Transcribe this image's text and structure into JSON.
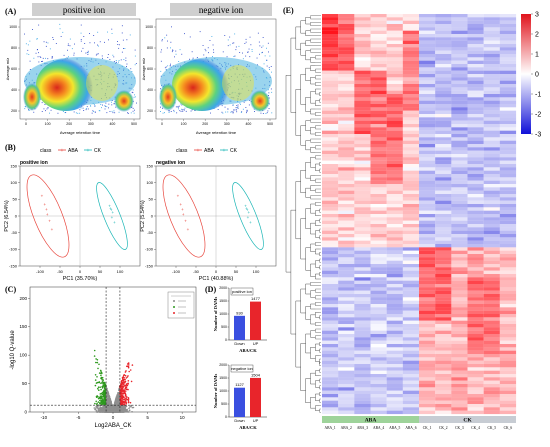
{
  "panels": {
    "A": {
      "label": "(A)",
      "pos_title": "positive ion",
      "neg_title": "negative ion",
      "xlabel": "Average retention time",
      "ylabel": "Average m/z",
      "yticks": [
        "1000",
        "800",
        "600",
        "400",
        "200"
      ],
      "xticks": [
        "0",
        "100",
        "200",
        "300",
        "400",
        "500"
      ]
    },
    "B": {
      "label": "(B)",
      "legend_title": "class",
      "legend_items": [
        "ABA",
        "CK"
      ],
      "pos": {
        "subtitle": "positive ion",
        "xlabel": "PC1 (35.70%)",
        "ylabel": "PC2 (6.54%)",
        "xticks": [
          "-100",
          "-50",
          "0",
          "50",
          "100"
        ],
        "yticks": [
          "150",
          "100",
          "50",
          "0",
          "-50",
          "-100",
          "-150"
        ]
      },
      "neg": {
        "subtitle": "negative ion",
        "xlabel": "PC1 (40.88%)",
        "ylabel": "PC2 (5.54%)",
        "xticks": [
          "-100",
          "-50",
          "0",
          "50",
          "100"
        ],
        "yticks": [
          "150",
          "100",
          "50",
          "0",
          "-50",
          "-100",
          "-150"
        ]
      }
    },
    "C": {
      "label": "(C)",
      "xlabel": "Log2ABA_CK",
      "ylabel": "-log10 Q-value",
      "xticks": [
        "-10",
        "-5",
        "0",
        "5",
        "10"
      ],
      "yticks": [
        "200",
        "150",
        "100",
        "50",
        "0"
      ]
    },
    "D": {
      "label": "(D)"
    },
    "E": {
      "label": "(E)"
    }
  },
  "colors": {
    "aba": "#e8453c",
    "ck": "#19b5b5",
    "up": "#e8252b",
    "down": "#3a4fe0",
    "green": "#2e9a1e",
    "heat_hi": "#e0141c",
    "heat_lo": "#1010d8",
    "aba_bar": "#9ed39a",
    "ck_bar": "#c7ccd3"
  },
  "chart_data": [
    {
      "type": "bar",
      "title": "positive ion",
      "xlabel": "ABA/CK",
      "ylabel": "Number of DAMs",
      "categories": [
        "Down",
        "UP"
      ],
      "values": [
        930,
        1477
      ],
      "ylim": [
        0,
        2000
      ],
      "yticks": [
        "0",
        "500",
        "1000",
        "1500",
        "2000"
      ]
    },
    {
      "type": "bar",
      "title": "negative ion",
      "xlabel": "ABA/CK",
      "ylabel": "Number of DAMs",
      "categories": [
        "Down",
        "UP"
      ],
      "values": [
        1127,
        1504
      ],
      "ylim": [
        0,
        2000
      ],
      "yticks": [
        "0",
        "500",
        "1000",
        "1500",
        "2000"
      ]
    },
    {
      "type": "heatmap",
      "columns": [
        "ABA_1",
        "ABA_2",
        "ABA_3",
        "ABA_4",
        "ABA_5",
        "ABA_6",
        "CK_1",
        "CK_2",
        "CK_3",
        "CK_4",
        "CK_5",
        "CK_6"
      ],
      "groups": [
        "ABA",
        "CK"
      ],
      "legend_ticks": [
        "3",
        "2",
        "1",
        "0",
        "-1",
        "-2",
        "-3"
      ],
      "range": [
        -3,
        3
      ]
    }
  ]
}
